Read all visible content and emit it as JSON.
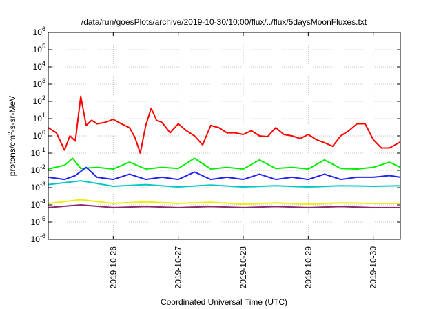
{
  "chart_data": {
    "type": "line",
    "title": "/data/run/goesPlots/archive/2019-10-30/10:00/flux/../flux/5daysMoonFluxes.txt",
    "xlabel": "Coordinated Universal Time (UTC)",
    "ylabel": {
      "pre": "protons/cm",
      "sup": "2",
      "post": "-s-sr-MeV"
    },
    "yscale": "log",
    "ylim": [
      1e-06,
      1000000.0
    ],
    "xlim": [
      "2019-10-25T00:00",
      "2019-10-30T10:00"
    ],
    "grid": true,
    "y_ticks": [
      {
        "value": 1e-06,
        "base": "10",
        "exp": "-6"
      },
      {
        "value": 1e-05,
        "base": "10",
        "exp": "-5"
      },
      {
        "value": 0.0001,
        "base": "10",
        "exp": "-4"
      },
      {
        "value": 0.001,
        "base": "10",
        "exp": "-3"
      },
      {
        "value": 0.01,
        "base": "10",
        "exp": "-2"
      },
      {
        "value": 0.1,
        "base": "10",
        "exp": "-1"
      },
      {
        "value": 1.0,
        "base": "10",
        "exp": "0"
      },
      {
        "value": 10.0,
        "base": "10",
        "exp": "1"
      },
      {
        "value": 100.0,
        "base": "10",
        "exp": "2"
      },
      {
        "value": 1000.0,
        "base": "10",
        "exp": "3"
      },
      {
        "value": 10000.0,
        "base": "10",
        "exp": "4"
      },
      {
        "value": 100000.0,
        "base": "10",
        "exp": "5"
      },
      {
        "value": 1000000.0,
        "base": "10",
        "exp": "6"
      }
    ],
    "x_ticks": [
      {
        "value": "2019-10-26T00:00",
        "label": "2019-10-26"
      },
      {
        "value": "2019-10-27T00:00",
        "label": "2019-10-27"
      },
      {
        "value": "2019-10-28T00:00",
        "label": "2019-10-28"
      },
      {
        "value": "2019-10-29T00:00",
        "label": "2019-10-29"
      },
      {
        "value": "2019-10-30T00:00",
        "label": "2019-10-30"
      }
    ],
    "series": [
      {
        "color": "#ff0000",
        "x": [
          "2019-10-25T00:00",
          "2019-10-25T03:00",
          "2019-10-25T06:00",
          "2019-10-25T08:00",
          "2019-10-25T10:00",
          "2019-10-25T12:00",
          "2019-10-25T14:00",
          "2019-10-25T16:00",
          "2019-10-25T18:00",
          "2019-10-25T21:00",
          "2019-10-26T00:00",
          "2019-10-26T03:00",
          "2019-10-26T06:00",
          "2019-10-26T08:00",
          "2019-10-26T10:00",
          "2019-10-26T12:00",
          "2019-10-26T14:00",
          "2019-10-26T16:00",
          "2019-10-26T18:00",
          "2019-10-26T21:00",
          "2019-10-27T00:00",
          "2019-10-27T03:00",
          "2019-10-27T06:00",
          "2019-10-27T09:00",
          "2019-10-27T12:00",
          "2019-10-27T15:00",
          "2019-10-27T18:00",
          "2019-10-27T21:00",
          "2019-10-28T00:00",
          "2019-10-28T03:00",
          "2019-10-28T06:00",
          "2019-10-28T09:00",
          "2019-10-28T12:00",
          "2019-10-28T15:00",
          "2019-10-28T18:00",
          "2019-10-28T21:00",
          "2019-10-29T00:00",
          "2019-10-29T03:00",
          "2019-10-29T06:00",
          "2019-10-29T09:00",
          "2019-10-29T12:00",
          "2019-10-29T15:00",
          "2019-10-29T18:00",
          "2019-10-29T21:00",
          "2019-10-30T00:00",
          "2019-10-30T03:00",
          "2019-10-30T06:00",
          "2019-10-30T10:00"
        ],
        "y": [
          3,
          1.5,
          0.15,
          1,
          0.5,
          200,
          4,
          8,
          5,
          6,
          9,
          5,
          3,
          0.8,
          0.1,
          4,
          40,
          8,
          6,
          1.5,
          5,
          2,
          1,
          0.3,
          4,
          3,
          1.5,
          1.5,
          1.2,
          2,
          1,
          0.9,
          3,
          1.2,
          1,
          0.7,
          1.2,
          0.6,
          0.4,
          0.25,
          1,
          2,
          5,
          5,
          0.6,
          0.2,
          0.2,
          0.45
        ]
      },
      {
        "color": "#00ee00",
        "x": [
          "2019-10-25T00:00",
          "2019-10-25T06:00",
          "2019-10-25T09:00",
          "2019-10-25T12:00",
          "2019-10-25T18:00",
          "2019-10-26T00:00",
          "2019-10-26T06:00",
          "2019-10-26T12:00",
          "2019-10-26T18:00",
          "2019-10-27T00:00",
          "2019-10-27T06:00",
          "2019-10-27T12:00",
          "2019-10-27T18:00",
          "2019-10-28T00:00",
          "2019-10-28T06:00",
          "2019-10-28T12:00",
          "2019-10-28T18:00",
          "2019-10-29T00:00",
          "2019-10-29T06:00",
          "2019-10-29T12:00",
          "2019-10-29T18:00",
          "2019-10-30T00:00",
          "2019-10-30T06:00",
          "2019-10-30T10:00"
        ],
        "y": [
          0.012,
          0.02,
          0.05,
          0.013,
          0.015,
          0.012,
          0.03,
          0.012,
          0.015,
          0.013,
          0.05,
          0.012,
          0.015,
          0.012,
          0.04,
          0.013,
          0.015,
          0.012,
          0.04,
          0.013,
          0.012,
          0.015,
          0.03,
          0.015
        ]
      },
      {
        "color": "#2020ff",
        "x": [
          "2019-10-25T00:00",
          "2019-10-25T06:00",
          "2019-10-25T10:00",
          "2019-10-25T14:00",
          "2019-10-25T18:00",
          "2019-10-26T00:00",
          "2019-10-26T06:00",
          "2019-10-26T12:00",
          "2019-10-26T18:00",
          "2019-10-27T00:00",
          "2019-10-27T06:00",
          "2019-10-27T12:00",
          "2019-10-27T18:00",
          "2019-10-28T00:00",
          "2019-10-28T06:00",
          "2019-10-28T12:00",
          "2019-10-28T18:00",
          "2019-10-29T00:00",
          "2019-10-29T06:00",
          "2019-10-29T12:00",
          "2019-10-29T18:00",
          "2019-10-30T00:00",
          "2019-10-30T06:00",
          "2019-10-30T10:00"
        ],
        "y": [
          0.004,
          0.003,
          0.005,
          0.015,
          0.004,
          0.003,
          0.006,
          0.003,
          0.004,
          0.003,
          0.008,
          0.003,
          0.004,
          0.003,
          0.006,
          0.003,
          0.004,
          0.003,
          0.006,
          0.003,
          0.004,
          0.004,
          0.005,
          0.004
        ]
      },
      {
        "color": "#00c8c8",
        "x": [
          "2019-10-25T00:00",
          "2019-10-25T12:00",
          "2019-10-26T00:00",
          "2019-10-26T12:00",
          "2019-10-27T00:00",
          "2019-10-27T12:00",
          "2019-10-28T00:00",
          "2019-10-28T12:00",
          "2019-10-29T00:00",
          "2019-10-29T12:00",
          "2019-10-30T00:00",
          "2019-10-30T10:00"
        ],
        "y": [
          0.0015,
          0.0025,
          0.0012,
          0.0015,
          0.0011,
          0.0014,
          0.0011,
          0.0013,
          0.0011,
          0.0013,
          0.0012,
          0.0013
        ]
      },
      {
        "color": "#eeee00",
        "x": [
          "2019-10-25T00:00",
          "2019-10-25T12:00",
          "2019-10-26T00:00",
          "2019-10-26T12:00",
          "2019-10-27T00:00",
          "2019-10-27T12:00",
          "2019-10-28T00:00",
          "2019-10-28T12:00",
          "2019-10-29T00:00",
          "2019-10-29T12:00",
          "2019-10-30T00:00",
          "2019-10-30T10:00"
        ],
        "y": [
          0.00012,
          0.0002,
          0.00012,
          0.00015,
          0.00012,
          0.00014,
          0.00011,
          0.00013,
          0.00011,
          0.00013,
          0.00012,
          0.00012
        ]
      },
      {
        "color": "#8b2a6e",
        "x": [
          "2019-10-25T00:00",
          "2019-10-25T12:00",
          "2019-10-26T00:00",
          "2019-10-26T12:00",
          "2019-10-27T00:00",
          "2019-10-27T12:00",
          "2019-10-28T00:00",
          "2019-10-28T12:00",
          "2019-10-29T00:00",
          "2019-10-29T12:00",
          "2019-10-30T00:00",
          "2019-10-30T10:00"
        ],
        "y": [
          7e-05,
          0.0001,
          7e-05,
          8e-05,
          7e-05,
          8e-05,
          7e-05,
          8e-05,
          7e-05,
          8e-05,
          7e-05,
          7e-05
        ]
      }
    ]
  }
}
